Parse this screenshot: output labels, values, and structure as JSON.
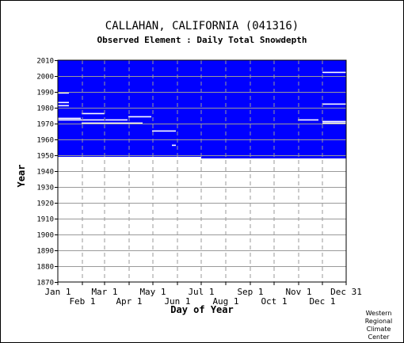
{
  "chart_data": {
    "type": "heatmap",
    "title": "CALLAHAN, CALIFORNIA   (041316)",
    "subtitle": "Observed Element : Daily Total Snowdepth",
    "xlabel": "Day of Year",
    "ylabel": "Year",
    "x_ticks_upper": [
      "Jan 1",
      "Mar 1",
      "May 1",
      "Jul 1",
      "Sep 1",
      "Nov 1",
      "Dec 31"
    ],
    "x_ticks_lower": [
      "Feb 1",
      "Apr 1",
      "Jun 1",
      "Aug 1",
      "Oct 1",
      "Dec 1"
    ],
    "y_ticks": [
      "2010",
      "2000",
      "1990",
      "1980",
      "1970",
      "1960",
      "1950",
      "1940",
      "1930",
      "1920",
      "1910",
      "1900",
      "1890",
      "1880",
      "1870"
    ],
    "ylim": [
      1870,
      2010
    ],
    "xlim": [
      1,
      365
    ],
    "grid": true,
    "data_color": "#0000ff",
    "coverage": {
      "year_start": 1948,
      "year_end": 2010,
      "partial_year": {
        "year": 1948,
        "day_start": 182,
        "day_end": 365
      }
    },
    "missing_records": [
      {
        "year": 1972,
        "day_start": 1,
        "day_end": 60
      },
      {
        "year": 1973,
        "day_start": 1,
        "day_end": 30
      },
      {
        "year": 1970,
        "day_start": 31,
        "day_end": 108
      },
      {
        "year": 1976,
        "day_start": 31,
        "day_end": 60
      },
      {
        "year": 1972,
        "day_start": 61,
        "day_end": 89
      },
      {
        "year": 1974,
        "day_start": 90,
        "day_end": 119
      },
      {
        "year": 1965,
        "day_start": 120,
        "day_end": 150
      },
      {
        "year": 1981,
        "day_start": 1,
        "day_end": 15
      },
      {
        "year": 1983,
        "day_start": 1,
        "day_end": 15
      },
      {
        "year": 1989,
        "day_start": 1,
        "day_end": 15
      },
      {
        "year": 1956,
        "day_start": 145,
        "day_end": 150
      },
      {
        "year": 1972,
        "day_start": 304,
        "day_end": 330
      },
      {
        "year": 1970,
        "day_start": 335,
        "day_end": 365
      },
      {
        "year": 1971,
        "day_start": 335,
        "day_end": 365
      },
      {
        "year": 2002,
        "day_start": 335,
        "day_end": 365
      },
      {
        "year": 1982,
        "day_start": 335,
        "day_end": 365
      }
    ]
  },
  "credit": "Western\nRegional\nClimate\nCenter"
}
